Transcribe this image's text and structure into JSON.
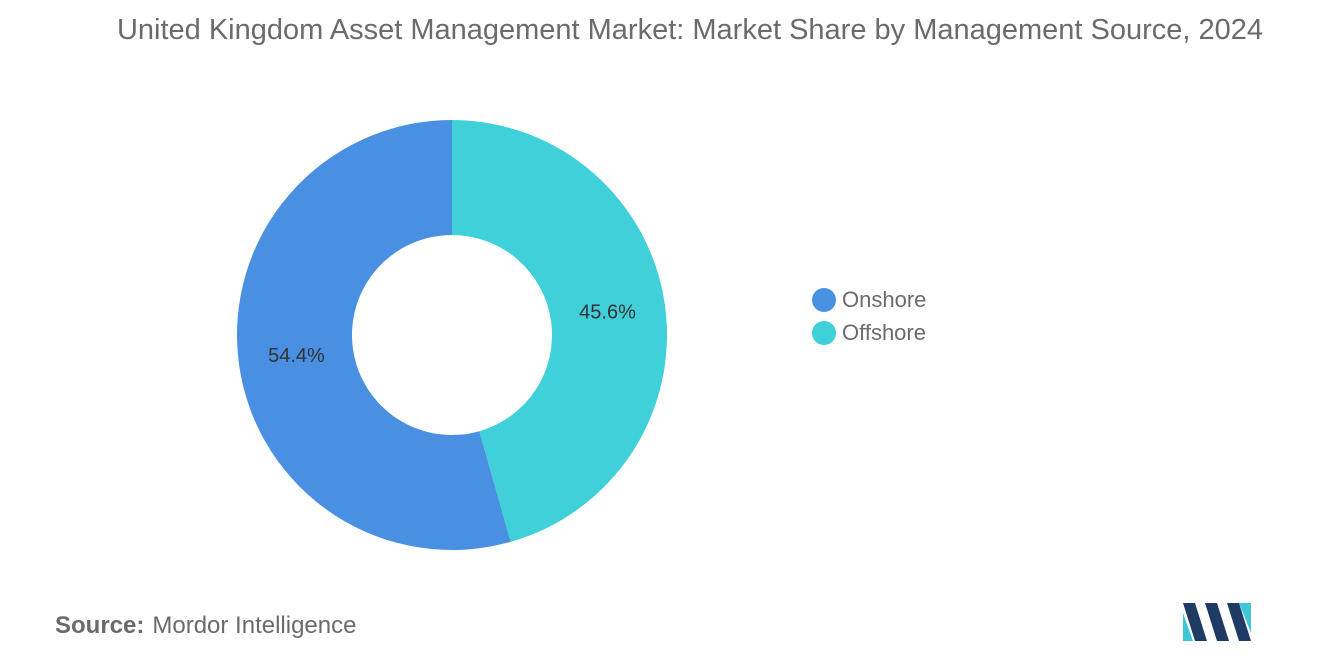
{
  "title": "United Kingdom Asset Management Market: Market Share by Management Source, 2024",
  "source": {
    "label": "Source:",
    "value": "Mordor Intelligence"
  },
  "logo": {
    "icon": "mordor-intelligence-logo",
    "colors": [
      "#1f3b63",
      "#3ec7d6"
    ]
  },
  "chart_data": {
    "type": "pie",
    "style": "donut",
    "title": "United Kingdom Asset Management Market: Market Share by Management Source, 2024",
    "start_angle_deg": 0,
    "direction": "clockwise",
    "legend_position": "right",
    "series": [
      {
        "name": "Onshore",
        "value": 54.4,
        "label": "54.4%",
        "color": "#4a90e2"
      },
      {
        "name": "Offshore",
        "value": 45.6,
        "label": "45.6%",
        "color": "#40d0d9"
      }
    ]
  }
}
